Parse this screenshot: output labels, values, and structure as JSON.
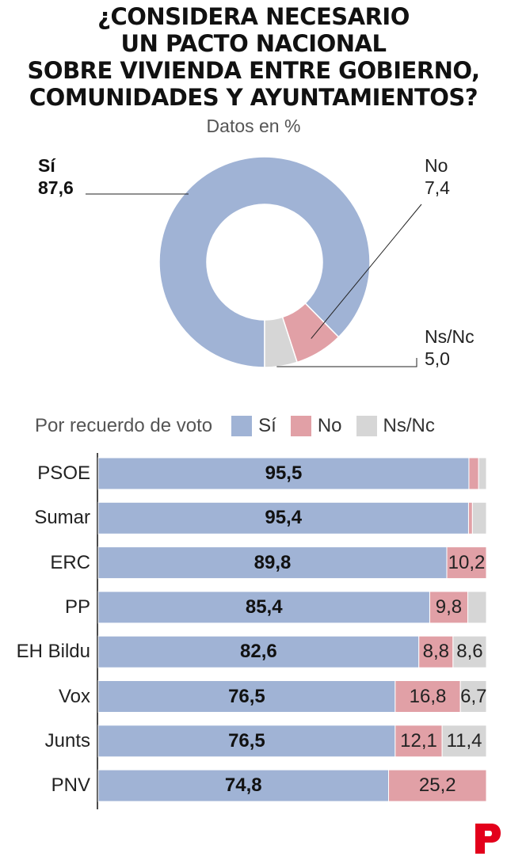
{
  "title_lines": [
    "¿CONSIDERA NECESARIO",
    "UN PACTO NACIONAL",
    "SOBRE VIVIENDA ENTRE GOBIERNO,",
    "COMUNIDADES Y AYUNTAMIENTOS?"
  ],
  "subtitle": "Datos en %",
  "colors": {
    "si": "#a0b3d5",
    "no": "#e1a0a6",
    "nsnc": "#d6d6d6",
    "brand": "#e3001b"
  },
  "donut": {
    "si_label": "Sí",
    "si_value": "87,6",
    "no_label": "No",
    "no_value": "7,4",
    "nsnc_label": "Ns/Nc",
    "nsnc_value": "5,0"
  },
  "legend": {
    "title": "Por recuerdo de voto",
    "si": "Sí",
    "no": "No",
    "nsnc": "Ns/Nc"
  },
  "chart_data": [
    {
      "type": "pie",
      "title": "¿CONSIDERA NECESARIO UN PACTO NACIONAL SOBRE VIVIENDA ENTRE GOBIERNO, COMUNIDADES Y AYUNTAMIENTOS?",
      "subtitle": "Datos en %",
      "categories": [
        "Sí",
        "No",
        "Ns/Nc"
      ],
      "values": [
        87.6,
        7.4,
        5.0
      ],
      "donut": true
    },
    {
      "type": "bar",
      "orientation": "horizontal",
      "stacked": true,
      "title": "Por recuerdo de voto",
      "categories": [
        "PSOE",
        "Sumar",
        "ERC",
        "PP",
        "EH Bildu",
        "Vox",
        "Junts",
        "PNV"
      ],
      "series": [
        {
          "name": "Sí",
          "values": [
            95.5,
            95.4,
            89.8,
            85.4,
            82.6,
            76.5,
            76.5,
            74.8
          ]
        },
        {
          "name": "No",
          "values": [
            2.5,
            1.0,
            10.2,
            9.8,
            8.8,
            16.8,
            12.1,
            25.2
          ]
        },
        {
          "name": "Ns/Nc",
          "values": [
            2.0,
            3.6,
            0,
            4.8,
            8.6,
            6.7,
            11.4,
            0
          ]
        }
      ],
      "value_labels": [
        [
          "95,5",
          "",
          ""
        ],
        [
          "95,4",
          "",
          ""
        ],
        [
          "89,8",
          "10,2",
          ""
        ],
        [
          "85,4",
          "9,8",
          ""
        ],
        [
          "82,6",
          "8,8",
          "8,6"
        ],
        [
          "76,5",
          "16,8",
          "6,7"
        ],
        [
          "76,5",
          "12,1",
          "11,4"
        ],
        [
          "74,8",
          "25,2",
          ""
        ]
      ],
      "xlim": [
        0,
        100
      ]
    }
  ]
}
